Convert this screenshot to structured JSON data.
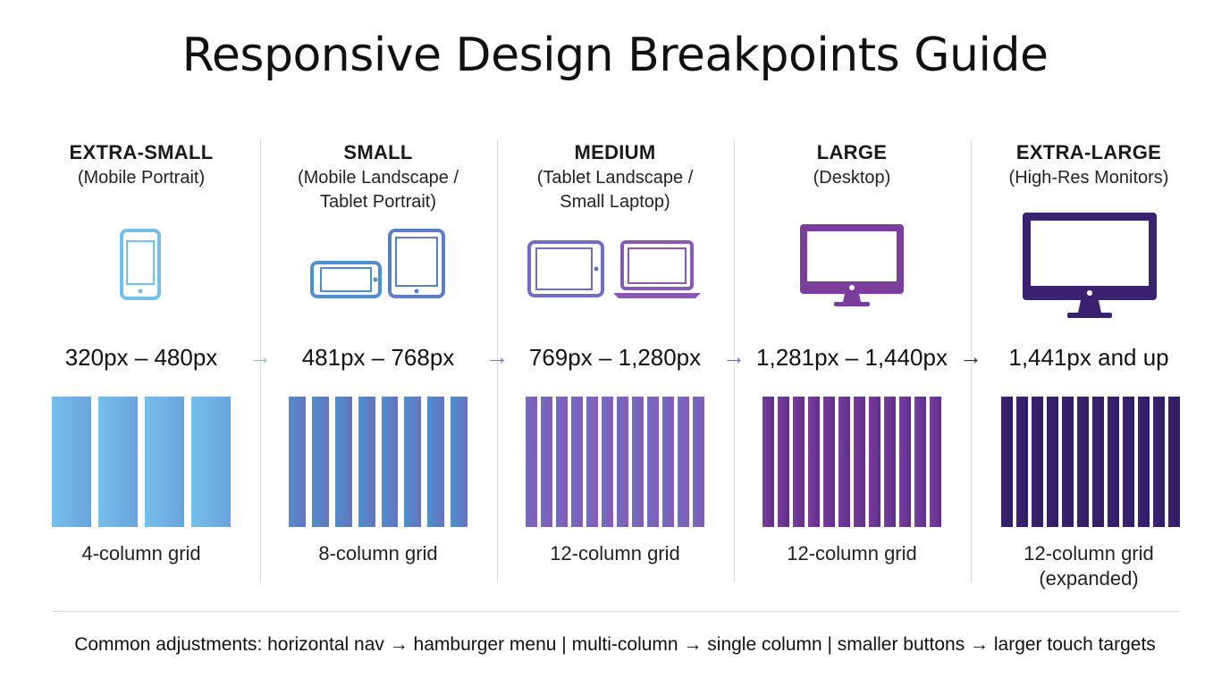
{
  "title": "Responsive Design Breakpoints Guide",
  "breakpoints": [
    {
      "heading": "EXTRA-SMALL",
      "subtitle": "(Mobile Portrait)",
      "icon": "smartphone-icon",
      "range": "320px – 480px",
      "grid_label": "4-column grid",
      "columns": 4,
      "color": "#74c0ec",
      "color_end": "#6aa3dc"
    },
    {
      "heading": "SMALL",
      "subtitle": "(Mobile Landscape /\nTablet Portrait)",
      "icon": "phone-landscape-and-tablet-icon",
      "range": "481px – 768px",
      "grid_label": "8-column grid",
      "columns": 8,
      "color": "#4f8fd0",
      "color_end": "#6673bd"
    },
    {
      "heading": "MEDIUM",
      "subtitle": "(Tablet Landscape /\nSmall Laptop)",
      "icon": "tablet-and-laptop-icon",
      "range": "769px – 1,280px",
      "grid_label": "12-column grid",
      "columns": 12,
      "color": "#6f6ec4",
      "color_end": "#8a58b4"
    },
    {
      "heading": "LARGE",
      "subtitle": "(Desktop)",
      "icon": "desktop-monitor-icon",
      "range": "1,281px – 1,440px",
      "grid_label": "12-column grid",
      "columns": 12,
      "color": "#7a3d9c",
      "color_end": "#5e2f8c"
    },
    {
      "heading": "EXTRA-LARGE",
      "subtitle": "(High-Res Monitors)",
      "icon": "large-monitor-icon",
      "range": "1,441px and up",
      "grid_label": "12-column grid\n(expanded)",
      "columns": 12,
      "color": "#3b2270",
      "color_end": "#2f1d63"
    }
  ],
  "arrows": [
    {
      "glyph": "→",
      "color": "#7fc3e6"
    },
    {
      "glyph": "→",
      "color": "#5f7fc6"
    },
    {
      "glyph": "→",
      "color": "#8b5fbf"
    },
    {
      "glyph": "→",
      "color": "#3b2270"
    }
  ],
  "footer": "Common adjustments: horizontal nav → hamburger menu | multi-column → single column | smaller buttons → larger touch targets"
}
